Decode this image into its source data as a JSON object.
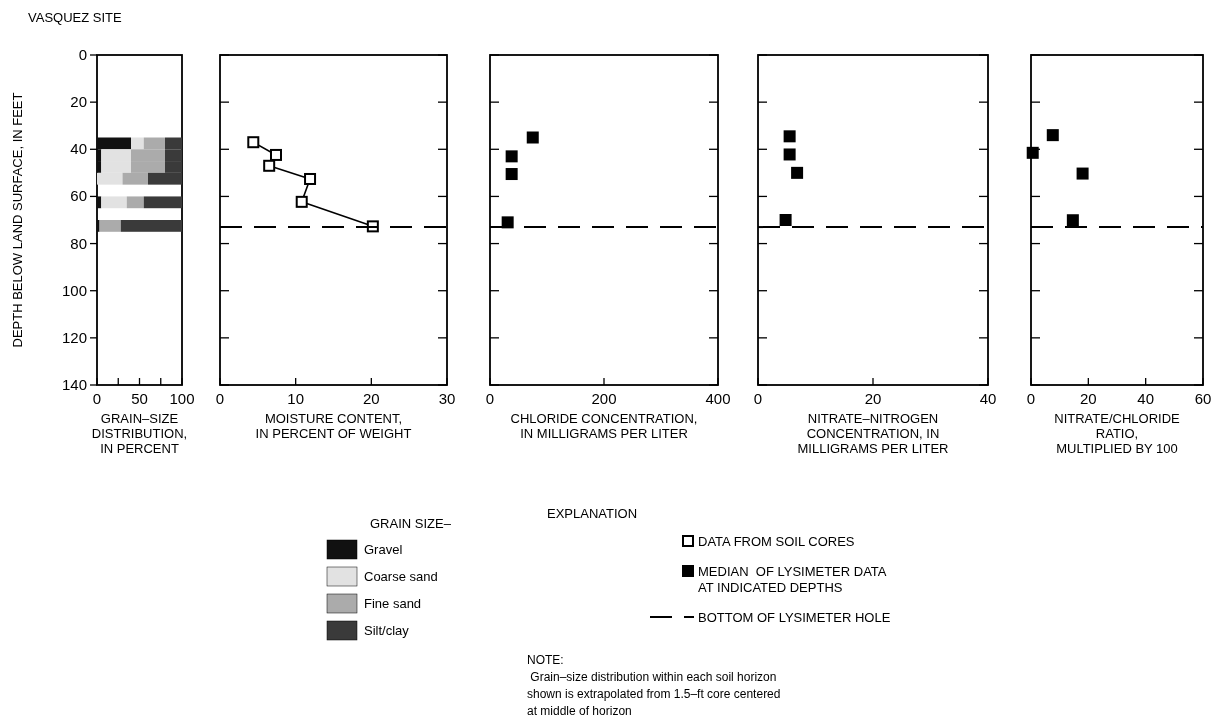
{
  "chart_data": [
    {
      "type": "bar",
      "orientation": "horizontal",
      "stacked": true,
      "title": "VASQUEZ SITE",
      "ylabel": "DEPTH BELOW LAND SURFACE, IN FEET",
      "xlabel": "GRAIN–SIZE\nDISTRIBUTION,\nIN PERCENT",
      "legend_title": "GRAIN SIZE–",
      "legend": "bottom",
      "x": [
        37.5,
        42.5,
        47.5,
        52.5,
        62.5,
        72.5
      ],
      "series": [
        {
          "name": "Gravel",
          "color": "#111111",
          "values": [
            40,
            5,
            5,
            0,
            5,
            3
          ]
        },
        {
          "name": "Coarse sand",
          "color": "#e2e2e2",
          "values": [
            15,
            35,
            35,
            30,
            30,
            0
          ]
        },
        {
          "name": "Fine sand",
          "color": "#ababab",
          "values": [
            25,
            40,
            40,
            30,
            20,
            25
          ]
        },
        {
          "name": "Silt/clay",
          "color": "#3a3a3a",
          "values": [
            20,
            20,
            20,
            40,
            45,
            72
          ]
        }
      ],
      "xlim": [
        0,
        100
      ],
      "xticks": [
        0,
        {
          "value": 25,
          "label": null
        },
        50,
        {
          "value": 75,
          "label": null
        },
        100
      ],
      "ylim": [
        140,
        0
      ],
      "yticks": [
        0,
        20,
        40,
        60,
        80,
        100,
        120,
        140
      ],
      "annotations": [
        "NOTE:\n Grain–size distribution within each soil horizon\nshown is extrapolated from 1.5–ft core centered\nat middle of horizon"
      ]
    },
    {
      "type": "line",
      "xlabel": "MOISTURE CONTENT,\nIN PERCENT OF WEIGHT",
      "legend_title": "EXPLANATION",
      "legend": "bottom",
      "marker": "square",
      "line_style": "solid",
      "tick_labels": "x",
      "series": [
        {
          "name": "DATA FROM SOIL CORES",
          "color": "#000000",
          "x": [
            4.4,
            7.4,
            6.5,
            11.9,
            10.8,
            20.2
          ],
          "values": [
            37,
            42.4,
            47,
            52.6,
            62.3,
            72.7
          ]
        }
      ],
      "xlim": [
        0,
        30
      ],
      "xticks": [
        0,
        10,
        20,
        30
      ],
      "ylim": [
        140,
        0
      ],
      "yticks": [
        {
          "value": 0,
          "label": null
        },
        {
          "value": 20,
          "label": null
        },
        {
          "value": 40,
          "label": null
        },
        {
          "value": 60,
          "label": null
        },
        {
          "value": 80,
          "label": null
        },
        {
          "value": 100,
          "label": null
        },
        {
          "value": 120,
          "label": null
        },
        {
          "value": 140,
          "label": null
        }
      ],
      "ref_lines": [
        {
          "axis": "y",
          "value": 73,
          "label": "BOTTOM OF LYSIMETER HOLE",
          "line_style": "dashed",
          "color": "#000000"
        }
      ]
    },
    {
      "type": "scatter",
      "xlabel": "CHLORIDE CONCENTRATION,\nIN MILLIGRAMS PER LITER",
      "legend": "bottom",
      "marker": "square",
      "tick_labels": "x",
      "series": [
        {
          "name": "MEDIAN  OF LYSIMETER DATA\nAT INDICATED DEPTHS",
          "color": "#000000",
          "x": [
            75,
            38,
            38,
            31
          ],
          "values": [
            35,
            43,
            50.5,
            71
          ]
        }
      ],
      "xlim": [
        0,
        400
      ],
      "xticks": [
        0,
        200,
        400
      ],
      "ylim": [
        140,
        0
      ],
      "yticks": [
        {
          "value": 0,
          "label": null
        },
        {
          "value": 20,
          "label": null
        },
        {
          "value": 40,
          "label": null
        },
        {
          "value": 60,
          "label": null
        },
        {
          "value": 80,
          "label": null
        },
        {
          "value": 100,
          "label": null
        },
        {
          "value": 120,
          "label": null
        },
        {
          "value": 140,
          "label": null
        }
      ],
      "ref_lines": [
        {
          "axis": "y",
          "value": 73,
          "line_style": "dashed",
          "color": "#000000"
        }
      ]
    },
    {
      "type": "scatter",
      "xlabel": "NITRATE–NITROGEN\nCONCENTRATION, IN\nMILLIGRAMS PER LITER",
      "marker": "square",
      "tick_labels": "x",
      "series": [
        {
          "color": "#000000",
          "x": [
            5.5,
            5.5,
            6.8,
            4.8
          ],
          "values": [
            34.5,
            42.2,
            50,
            70
          ]
        }
      ],
      "xlim": [
        0,
        40
      ],
      "xticks": [
        0,
        20,
        40
      ],
      "ylim": [
        140,
        0
      ],
      "yticks": [
        {
          "value": 0,
          "label": null
        },
        {
          "value": 20,
          "label": null
        },
        {
          "value": 40,
          "label": null
        },
        {
          "value": 60,
          "label": null
        },
        {
          "value": 80,
          "label": null
        },
        {
          "value": 100,
          "label": null
        },
        {
          "value": 120,
          "label": null
        },
        {
          "value": 140,
          "label": null
        }
      ],
      "ref_lines": [
        {
          "axis": "y",
          "value": 73,
          "line_style": "dashed",
          "color": "#000000"
        }
      ]
    },
    {
      "type": "scatter",
      "xlabel": "NITRATE/CHLORIDE\nRATIO,\nMULTIPLIED BY 100",
      "marker": "square",
      "tick_labels": "x",
      "series": [
        {
          "color": "#000000",
          "x": [
            7.6,
            0.6,
            18,
            14.6
          ],
          "values": [
            34,
            41.5,
            50.3,
            70.1
          ]
        }
      ],
      "xlim": [
        0,
        60
      ],
      "xticks": [
        0,
        20,
        40,
        60
      ],
      "ylim": [
        140,
        0
      ],
      "yticks": [
        {
          "value": 0,
          "label": null
        },
        {
          "value": 20,
          "label": null
        },
        {
          "value": 40,
          "label": null
        },
        {
          "value": 60,
          "label": null
        },
        {
          "value": 80,
          "label": null
        },
        {
          "value": 100,
          "label": null
        },
        {
          "value": 120,
          "label": null
        },
        {
          "value": 140,
          "label": null
        }
      ],
      "ref_lines": [
        {
          "axis": "y",
          "value": 73,
          "line_style": "dashed",
          "color": "#000000"
        }
      ]
    }
  ]
}
